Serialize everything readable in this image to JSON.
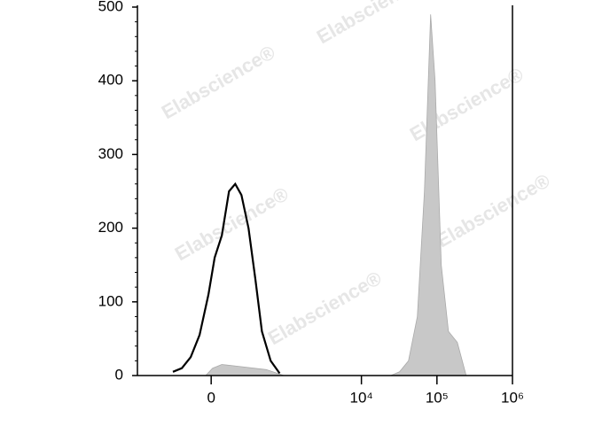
{
  "chart_data": {
    "type": "histogram-overlay",
    "x_scale": "biexponential",
    "watermark": "Elabscience®",
    "xlim": [
      -960,
      1000000
    ],
    "xticks": [
      0,
      {
        "value": 10000,
        "label": "10⁴"
      },
      {
        "value": 100000,
        "label": "10⁵"
      },
      {
        "value": 1000000,
        "label": "10⁶"
      }
    ],
    "ylim": [
      0,
      500
    ],
    "yticks": [
      0,
      100,
      200,
      300,
      400,
      500
    ],
    "series": [
      {
        "color": "#c8c8c8",
        "fill": true,
        "x": [
          -35,
          9,
          68,
          217,
          531,
          933,
          24365,
          31980,
          41920,
          54940,
          68370,
          82510,
          94500,
          114200,
          141900,
          186000,
          243600
        ],
        "values": [
          0,
          10,
          15,
          12,
          8,
          0,
          0,
          5,
          20,
          80,
          250,
          490,
          400,
          150,
          60,
          45,
          0
        ]
      },
      {
        "color": "#000000",
        "fill": false,
        "x": [
          -297,
          -209,
          -136,
          -74,
          -17,
          22,
          68,
          117,
          164,
          217,
          287,
          369,
          459,
          613,
          814
        ],
        "values": [
          5,
          10,
          25,
          55,
          110,
          160,
          190,
          250,
          260,
          245,
          200,
          130,
          60,
          20,
          3
        ]
      }
    ]
  }
}
